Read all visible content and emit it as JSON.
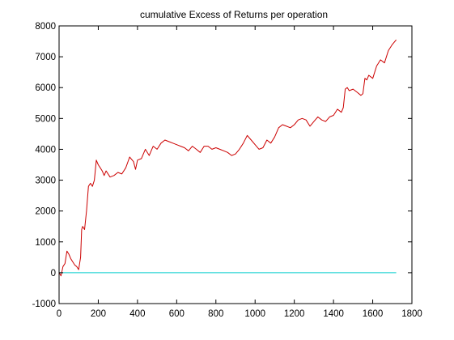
{
  "chart_data": {
    "type": "line",
    "title": "cumulative Excess of Returns per operation",
    "xlabel": "",
    "ylabel": "",
    "xlim": [
      0,
      1800
    ],
    "ylim": [
      -1000,
      8000
    ],
    "x_ticks": [
      0,
      200,
      400,
      600,
      800,
      1000,
      1200,
      1400,
      1600,
      1800
    ],
    "y_ticks": [
      -1000,
      0,
      1000,
      2000,
      3000,
      4000,
      5000,
      6000,
      7000,
      8000
    ],
    "grid": false,
    "legend": "none",
    "series": [
      {
        "color": "#cc0000",
        "x": [
          0,
          10,
          20,
          30,
          40,
          50,
          60,
          70,
          80,
          90,
          100,
          110,
          115,
          120,
          130,
          140,
          150,
          160,
          170,
          180,
          190,
          200,
          210,
          220,
          230,
          240,
          260,
          280,
          300,
          320,
          340,
          360,
          380,
          390,
          400,
          420,
          440,
          460,
          470,
          480,
          500,
          520,
          540,
          560,
          580,
          600,
          620,
          640,
          660,
          680,
          700,
          720,
          740,
          760,
          780,
          800,
          820,
          840,
          860,
          880,
          900,
          920,
          940,
          960,
          980,
          1000,
          1020,
          1040,
          1060,
          1080,
          1100,
          1120,
          1140,
          1160,
          1180,
          1200,
          1220,
          1240,
          1260,
          1280,
          1300,
          1320,
          1340,
          1360,
          1380,
          1400,
          1420,
          1440,
          1450,
          1460,
          1470,
          1480,
          1500,
          1520,
          1540,
          1550,
          1560,
          1570,
          1580,
          1600,
          1620,
          1640,
          1660,
          1680,
          1700,
          1720
        ],
        "y": [
          0,
          -100,
          200,
          300,
          700,
          600,
          450,
          350,
          250,
          200,
          100,
          500,
          1400,
          1500,
          1400,
          2000,
          2800,
          2900,
          2800,
          3000,
          3650,
          3500,
          3400,
          3300,
          3150,
          3300,
          3100,
          3150,
          3250,
          3200,
          3400,
          3750,
          3600,
          3350,
          3650,
          3700,
          4000,
          3800,
          3950,
          4100,
          4000,
          4200,
          4300,
          4250,
          4200,
          4150,
          4100,
          4050,
          3950,
          4100,
          4000,
          3900,
          4100,
          4100,
          4000,
          4050,
          4000,
          3950,
          3900,
          3800,
          3850,
          4000,
          4200,
          4450,
          4300,
          4150,
          4000,
          4050,
          4300,
          4200,
          4400,
          4700,
          4800,
          4750,
          4700,
          4800,
          4950,
          5000,
          4950,
          4750,
          4900,
          5050,
          4950,
          4900,
          5050,
          5100,
          5300,
          5200,
          5350,
          5950,
          6000,
          5900,
          5950,
          5850,
          5750,
          5800,
          6300,
          6250,
          6400,
          6300,
          6700,
          6900,
          6800,
          7200,
          7400,
          7550
        ]
      },
      {
        "color": "#00cccc",
        "x": [
          0,
          1720
        ],
        "y": [
          0,
          0
        ]
      }
    ]
  }
}
